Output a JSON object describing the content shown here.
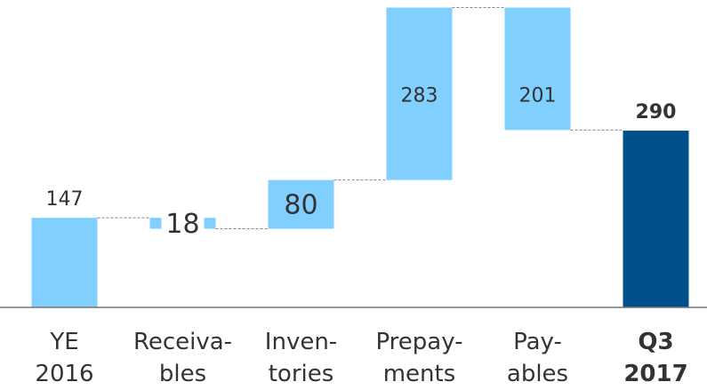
{
  "chart_data": {
    "type": "waterfall",
    "categories": [
      [
        "YE",
        "2016"
      ],
      [
        "Receiva-",
        "bles"
      ],
      [
        "Inven-",
        "tories"
      ],
      [
        "Prepay-",
        "ments"
      ],
      [
        "Pay-",
        "ables"
      ],
      [
        "Q3",
        "2017"
      ]
    ],
    "values": [
      147,
      -18,
      80,
      283,
      -201,
      290
    ],
    "value_labels": [
      "147",
      "18",
      "80",
      "283",
      "201",
      "290"
    ],
    "total": [
      false,
      false,
      false,
      false,
      false,
      true
    ],
    "color": "#80cfff",
    "total_color": "#00508c",
    "ylim": [
      0,
      500
    ]
  }
}
